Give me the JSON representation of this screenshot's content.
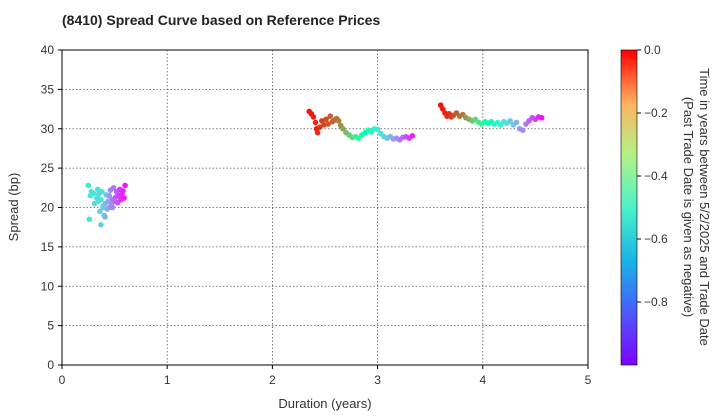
{
  "chart_data": {
    "type": "scatter",
    "title": "(8410)   Spread Curve based on Reference Prices",
    "xlabel": "Duration (years)",
    "ylabel": "Spread (bp)",
    "xlim": [
      0,
      5
    ],
    "ylim": [
      0,
      40
    ],
    "xticks": [
      "0",
      "1",
      "2",
      "3",
      "4",
      "5"
    ],
    "yticks": [
      "0",
      "5",
      "10",
      "15",
      "20",
      "25",
      "30",
      "35",
      "40"
    ],
    "grid": true,
    "colorbar": {
      "label_line1": "Time in years between 5/2/2025 and Trade Date",
      "label_line2": "(Past Trade Date is given as negative)",
      "range": [
        -1.0,
        0.0
      ],
      "ticks": [
        "0.0",
        "−0.2",
        "−0.4",
        "−0.6",
        "−0.8"
      ],
      "colormap": "rainbow"
    },
    "clusters": [
      {
        "name": "",
        "points": [
          [
            0.25,
            22.8,
            -0.62
          ],
          [
            0.27,
            21.5,
            -0.66
          ],
          [
            0.28,
            22.0,
            -0.6
          ],
          [
            0.3,
            21.8,
            -0.63
          ],
          [
            0.31,
            20.5,
            -0.67
          ],
          [
            0.33,
            21.2,
            -0.65
          ],
          [
            0.34,
            22.3,
            -0.61
          ],
          [
            0.35,
            20.8,
            -0.68
          ],
          [
            0.36,
            19.5,
            -0.7
          ],
          [
            0.37,
            21.0,
            -0.64
          ],
          [
            0.38,
            22.0,
            -0.66
          ],
          [
            0.39,
            20.2,
            -0.72
          ],
          [
            0.4,
            19.0,
            -0.73
          ],
          [
            0.41,
            20.5,
            -0.74
          ],
          [
            0.42,
            21.6,
            -0.71
          ],
          [
            0.43,
            19.8,
            -0.76
          ],
          [
            0.44,
            20.8,
            -0.78
          ],
          [
            0.45,
            21.5,
            -0.8
          ],
          [
            0.46,
            22.2,
            -0.82
          ],
          [
            0.47,
            20.4,
            -0.81
          ],
          [
            0.48,
            21.0,
            -0.84
          ],
          [
            0.49,
            22.5,
            -0.85
          ],
          [
            0.5,
            20.8,
            -0.86
          ],
          [
            0.51,
            21.3,
            -0.88
          ],
          [
            0.52,
            22.0,
            -0.89
          ],
          [
            0.53,
            20.6,
            -0.9
          ],
          [
            0.54,
            21.5,
            -0.92
          ],
          [
            0.55,
            22.3,
            -0.93
          ],
          [
            0.56,
            21.0,
            -0.94
          ],
          [
            0.57,
            21.7,
            -0.95
          ],
          [
            0.58,
            22.1,
            -0.96
          ],
          [
            0.59,
            21.2,
            -0.97
          ],
          [
            0.6,
            22.8,
            -0.98
          ],
          [
            0.26,
            18.5,
            -0.62
          ],
          [
            0.37,
            17.8,
            -0.7
          ],
          [
            0.41,
            18.8,
            -0.75
          ],
          [
            0.45,
            20.0,
            -0.79
          ],
          [
            0.35,
            21.7,
            -0.69
          ],
          [
            0.39,
            20.0,
            -0.71
          ],
          [
            0.48,
            20.0,
            -0.83
          ]
        ]
      },
      {
        "name": "",
        "points": [
          [
            2.35,
            32.2,
            -0.02
          ],
          [
            2.37,
            31.9,
            -0.03
          ],
          [
            2.39,
            31.5,
            -0.04
          ],
          [
            2.41,
            30.8,
            -0.05
          ],
          [
            2.42,
            30.0,
            -0.03
          ],
          [
            2.43,
            29.5,
            -0.06
          ],
          [
            2.45,
            30.2,
            -0.07
          ],
          [
            2.47,
            31.0,
            -0.08
          ],
          [
            2.49,
            30.5,
            -0.09
          ],
          [
            2.51,
            31.2,
            -0.1
          ],
          [
            2.53,
            30.6,
            -0.11
          ],
          [
            2.55,
            31.6,
            -0.12
          ],
          [
            2.57,
            30.9,
            -0.13
          ],
          [
            2.59,
            31.1,
            -0.14
          ],
          [
            2.61,
            31.3,
            -0.15
          ],
          [
            2.63,
            31.0,
            -0.16
          ],
          [
            2.65,
            30.4,
            -0.18
          ],
          [
            2.67,
            30.0,
            -0.22
          ],
          [
            2.7,
            29.5,
            -0.26
          ],
          [
            2.73,
            29.2,
            -0.3
          ],
          [
            2.76,
            28.9,
            -0.34
          ],
          [
            2.79,
            29.0,
            -0.38
          ],
          [
            2.82,
            28.8,
            -0.42
          ],
          [
            2.85,
            29.2,
            -0.46
          ],
          [
            2.88,
            29.5,
            -0.5
          ],
          [
            2.91,
            29.8,
            -0.53
          ],
          [
            2.94,
            29.6,
            -0.56
          ],
          [
            2.97,
            30.0,
            -0.59
          ],
          [
            3.0,
            29.9,
            -0.62
          ],
          [
            3.03,
            29.4,
            -0.65
          ],
          [
            3.06,
            29.0,
            -0.68
          ],
          [
            3.09,
            28.8,
            -0.72
          ],
          [
            3.12,
            29.0,
            -0.75
          ],
          [
            3.15,
            28.7,
            -0.78
          ],
          [
            3.18,
            28.8,
            -0.81
          ],
          [
            3.21,
            28.6,
            -0.84
          ],
          [
            3.24,
            28.9,
            -0.87
          ],
          [
            3.27,
            29.0,
            -0.9
          ],
          [
            3.3,
            28.8,
            -0.93
          ],
          [
            3.33,
            29.1,
            -0.96
          ]
        ]
      },
      {
        "name": "",
        "points": [
          [
            3.6,
            33.0,
            -0.02
          ],
          [
            3.62,
            32.5,
            -0.03
          ],
          [
            3.64,
            32.0,
            -0.04
          ],
          [
            3.66,
            31.6,
            -0.05
          ],
          [
            3.68,
            31.9,
            -0.06
          ],
          [
            3.7,
            31.5,
            -0.08
          ],
          [
            3.72,
            31.7,
            -0.1
          ],
          [
            3.75,
            32.0,
            -0.12
          ],
          [
            3.78,
            31.6,
            -0.14
          ],
          [
            3.81,
            31.8,
            -0.16
          ],
          [
            3.84,
            31.4,
            -0.2
          ],
          [
            3.87,
            31.2,
            -0.24
          ],
          [
            3.9,
            31.0,
            -0.28
          ],
          [
            3.93,
            31.2,
            -0.32
          ],
          [
            3.96,
            30.8,
            -0.36
          ],
          [
            3.99,
            30.6,
            -0.4
          ],
          [
            4.02,
            30.9,
            -0.44
          ],
          [
            4.05,
            30.7,
            -0.48
          ],
          [
            4.08,
            30.9,
            -0.52
          ],
          [
            4.11,
            30.6,
            -0.55
          ],
          [
            4.14,
            30.8,
            -0.58
          ],
          [
            4.17,
            30.5,
            -0.61
          ],
          [
            4.2,
            30.9,
            -0.64
          ],
          [
            4.23,
            30.7,
            -0.67
          ],
          [
            4.26,
            31.0,
            -0.7
          ],
          [
            4.29,
            30.5,
            -0.73
          ],
          [
            4.32,
            30.8,
            -0.76
          ],
          [
            4.35,
            30.0,
            -0.79
          ],
          [
            4.38,
            29.8,
            -0.82
          ],
          [
            4.41,
            30.6,
            -0.85
          ],
          [
            4.44,
            31.0,
            -0.88
          ],
          [
            4.47,
            31.4,
            -0.91
          ],
          [
            4.5,
            31.2,
            -0.93
          ],
          [
            4.53,
            31.5,
            -0.96
          ],
          [
            4.56,
            31.4,
            -0.98
          ]
        ]
      }
    ]
  }
}
